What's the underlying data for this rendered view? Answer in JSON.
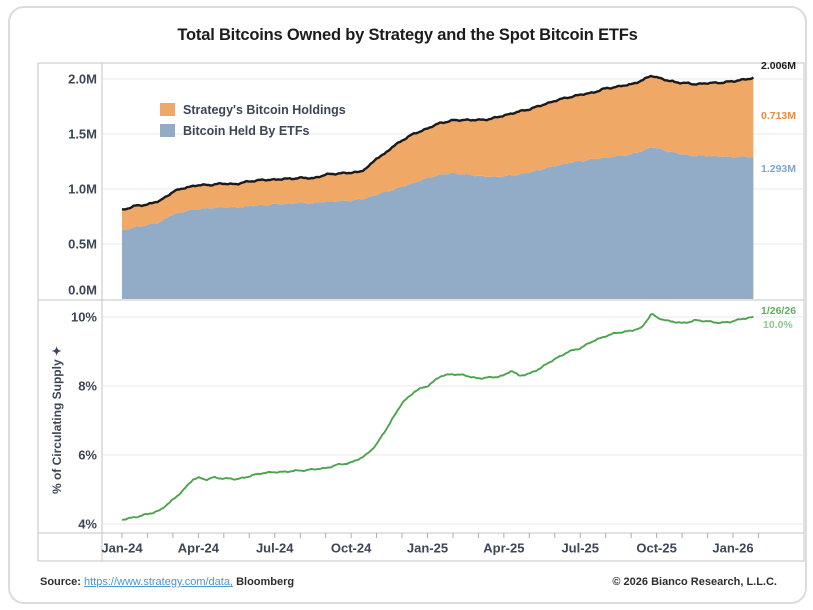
{
  "header": {
    "title": "Total Bitcoins Owned by Strategy and the Spot Bitcoin ETFs"
  },
  "footer": {
    "source_label": "Source:",
    "source_link": "https://www.strategy.com/data,",
    "source_suffix": "Bloomberg",
    "copyright": "© 2026 Bianco Research, L.L.C."
  },
  "colors": {
    "strategy_orange": "#F0A866",
    "etf_blue": "#92ACC8",
    "total_black": "#1a1a1a",
    "supply_green": "#4DA44D",
    "gridline": "#e9e9e9",
    "frame": "#c6c6c6",
    "axis_text": "#3c4656",
    "link_blue": "#4d94d0"
  },
  "chart_data": [
    {
      "type": "area",
      "panel": "top",
      "stacked": true,
      "x_unit": "months since Jan-2024",
      "x_range": [
        0,
        24.8
      ],
      "x_tick_months": [
        0,
        3,
        6,
        9,
        12,
        15,
        18,
        21,
        24
      ],
      "x_tick_labels": [
        "Jan-24",
        "Apr-24",
        "Jul-24",
        "Oct-24",
        "Jan-25",
        "Apr-25",
        "Jul-25",
        "Oct-25",
        "Jan-26"
      ],
      "ylim": [
        0,
        2.2
      ],
      "y_tick_values": [
        0,
        0.5,
        1.0,
        1.5,
        2.0
      ],
      "y_tick_labels": [
        "0.0M",
        "0.5M",
        "1.0M",
        "1.5M",
        "2.0M"
      ],
      "grid": true,
      "legend": [
        {
          "label": "Strategy's Bitcoin Holdings",
          "color": "#F0A866"
        },
        {
          "label": "Bitcoin Held By ETFs",
          "color": "#92ACC8"
        }
      ],
      "series": [
        {
          "name": "Bitcoin Held By ETFs",
          "role": "stack-base",
          "color": "#92ACC8",
          "unit": "M BTC",
          "points": [
            [
              0,
              0.62
            ],
            [
              0.5,
              0.655
            ],
            [
              1,
              0.67
            ],
            [
              1.5,
              0.7
            ],
            [
              2,
              0.77
            ],
            [
              2.5,
              0.8
            ],
            [
              3,
              0.82
            ],
            [
              3.5,
              0.825
            ],
            [
              4,
              0.835
            ],
            [
              4.5,
              0.83
            ],
            [
              5,
              0.845
            ],
            [
              5.5,
              0.855
            ],
            [
              6,
              0.86
            ],
            [
              6.5,
              0.865
            ],
            [
              7,
              0.875
            ],
            [
              7.5,
              0.87
            ],
            [
              8,
              0.885
            ],
            [
              8.5,
              0.89
            ],
            [
              9,
              0.895
            ],
            [
              9.5,
              0.91
            ],
            [
              10,
              0.95
            ],
            [
              10.5,
              0.985
            ],
            [
              11,
              1.02
            ],
            [
              11.5,
              1.06
            ],
            [
              12,
              1.1
            ],
            [
              12.5,
              1.13
            ],
            [
              13,
              1.145
            ],
            [
              13.5,
              1.13
            ],
            [
              14,
              1.12
            ],
            [
              14.5,
              1.11
            ],
            [
              15,
              1.115
            ],
            [
              15.5,
              1.13
            ],
            [
              16,
              1.15
            ],
            [
              16.5,
              1.18
            ],
            [
              17,
              1.21
            ],
            [
              17.5,
              1.235
            ],
            [
              18,
              1.255
            ],
            [
              18.5,
              1.27
            ],
            [
              19,
              1.285
            ],
            [
              19.5,
              1.3
            ],
            [
              20,
              1.315
            ],
            [
              20.5,
              1.35
            ],
            [
              20.8,
              1.385
            ],
            [
              21,
              1.37
            ],
            [
              21.5,
              1.34
            ],
            [
              22,
              1.315
            ],
            [
              22.5,
              1.3
            ],
            [
              23,
              1.3
            ],
            [
              23.5,
              1.295
            ],
            [
              24,
              1.29
            ],
            [
              24.8,
              1.293
            ]
          ]
        },
        {
          "name": "Strategy's Bitcoin Holdings",
          "role": "stack-top",
          "color": "#F0A866",
          "unit": "M BTC",
          "points": [
            [
              0,
              0.189
            ],
            [
              1,
              0.19
            ],
            [
              1.5,
              0.193
            ],
            [
              2,
              0.205
            ],
            [
              2.5,
              0.214
            ],
            [
              4.5,
              0.214
            ],
            [
              5,
              0.226
            ],
            [
              7.5,
              0.227
            ],
            [
              8,
              0.245
            ],
            [
              8.5,
              0.252
            ],
            [
              9.3,
              0.252
            ],
            [
              9.7,
              0.279
            ],
            [
              10,
              0.331
            ],
            [
              10.3,
              0.345
            ],
            [
              10.6,
              0.386
            ],
            [
              11,
              0.423
            ],
            [
              11.5,
              0.446
            ],
            [
              12,
              0.45
            ],
            [
              12.5,
              0.471
            ],
            [
              13,
              0.478
            ],
            [
              13.5,
              0.499
            ],
            [
              14,
              0.506
            ],
            [
              14.5,
              0.528
            ],
            [
              15,
              0.553
            ],
            [
              15.5,
              0.568
            ],
            [
              16,
              0.576
            ],
            [
              16.5,
              0.582
            ],
            [
              17,
              0.592
            ],
            [
              17.5,
              0.597
            ],
            [
              18,
              0.601
            ],
            [
              18.5,
              0.607
            ],
            [
              19,
              0.629
            ],
            [
              19.5,
              0.632
            ],
            [
              20,
              0.636
            ],
            [
              20.8,
              0.648
            ],
            [
              21.5,
              0.641
            ],
            [
              22,
              0.65
            ],
            [
              22.5,
              0.653
            ],
            [
              23,
              0.662
            ],
            [
              23.5,
              0.672
            ],
            [
              24,
              0.688
            ],
            [
              24.4,
              0.705
            ],
            [
              24.8,
              0.713
            ]
          ]
        },
        {
          "name": "Total",
          "role": "sum-line",
          "color": "#1a1a1a"
        }
      ],
      "jitter": 0.009,
      "annotations": [
        {
          "text": "2.006M",
          "color": "#1a1a1a",
          "refers_to": "Total"
        },
        {
          "text": "0.713M",
          "color": "#ED8A33",
          "refers_to": "Strategy's Bitcoin Holdings"
        },
        {
          "text": "1.293M",
          "color": "#7FA5C9",
          "refers_to": "Bitcoin Held By ETFs"
        }
      ]
    },
    {
      "type": "line",
      "panel": "bottom",
      "ylabel": "% of Circulating Supply ✦",
      "x_range": [
        0,
        24.8
      ],
      "ylim": [
        3.8,
        10.3
      ],
      "y_tick_values": [
        4,
        6,
        8,
        10
      ],
      "y_tick_labels": [
        "4%",
        "6%",
        "8%",
        "10%"
      ],
      "grid": true,
      "series": [
        {
          "name": "% of Circulating Supply",
          "color": "#4DA44D",
          "unit": "%",
          "points": [
            [
              0,
              4.12
            ],
            [
              0.5,
              4.2
            ],
            [
              1,
              4.28
            ],
            [
              1.5,
              4.4
            ],
            [
              2,
              4.7
            ],
            [
              2.5,
              5.05
            ],
            [
              2.8,
              5.3
            ],
            [
              3,
              5.35
            ],
            [
              3.3,
              5.28
            ],
            [
              3.6,
              5.35
            ],
            [
              4,
              5.32
            ],
            [
              4.5,
              5.3
            ],
            [
              5,
              5.38
            ],
            [
              5.5,
              5.48
            ],
            [
              6,
              5.5
            ],
            [
              6.5,
              5.52
            ],
            [
              7,
              5.55
            ],
            [
              7.5,
              5.58
            ],
            [
              8,
              5.62
            ],
            [
              8.5,
              5.72
            ],
            [
              9,
              5.78
            ],
            [
              9.5,
              5.95
            ],
            [
              10,
              6.3
            ],
            [
              10.5,
              6.9
            ],
            [
              11,
              7.5
            ],
            [
              11.5,
              7.85
            ],
            [
              12,
              8.0
            ],
            [
              12.5,
              8.28
            ],
            [
              13,
              8.35
            ],
            [
              13.5,
              8.3
            ],
            [
              14,
              8.22
            ],
            [
              14.5,
              8.25
            ],
            [
              15,
              8.3
            ],
            [
              15.3,
              8.45
            ],
            [
              15.6,
              8.3
            ],
            [
              16,
              8.35
            ],
            [
              16.5,
              8.55
            ],
            [
              17,
              8.78
            ],
            [
              17.5,
              8.98
            ],
            [
              18,
              9.1
            ],
            [
              18.5,
              9.3
            ],
            [
              19,
              9.45
            ],
            [
              19.5,
              9.55
            ],
            [
              20,
              9.6
            ],
            [
              20.4,
              9.68
            ],
            [
              20.8,
              10.1
            ],
            [
              21,
              9.98
            ],
            [
              21.5,
              9.88
            ],
            [
              22,
              9.82
            ],
            [
              22.5,
              9.9
            ],
            [
              23,
              9.88
            ],
            [
              23.5,
              9.82
            ],
            [
              24,
              9.88
            ],
            [
              24.4,
              9.95
            ],
            [
              24.8,
              10.0
            ]
          ]
        }
      ],
      "jitter": 0.028,
      "annotations": [
        {
          "text": "1/26/26",
          "color": "#5fae63"
        },
        {
          "text": "10.0%",
          "color": "#8fc795"
        }
      ]
    }
  ]
}
